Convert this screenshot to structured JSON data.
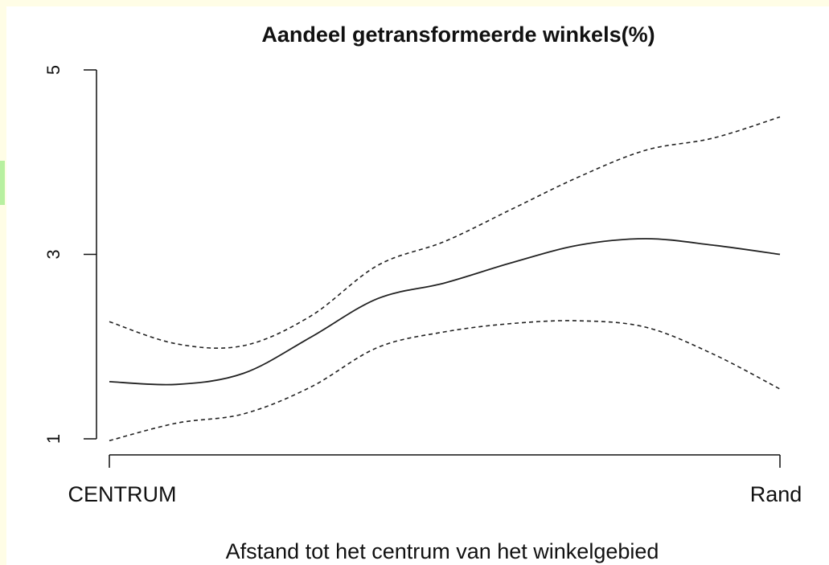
{
  "chart_data": {
    "type": "line",
    "title": "Aandeel getransformeerde winkels(%)",
    "x_label": "Afstand tot het centrum van het winkelgebied",
    "x": [
      0,
      0.1,
      0.2,
      0.3,
      0.4,
      0.5,
      0.6,
      0.7,
      0.8,
      0.9,
      1.0
    ],
    "xlim": [
      0,
      1
    ],
    "xticks": [
      {
        "value": 0,
        "label": "CENTRUM"
      },
      {
        "value": 1,
        "label": "Rand"
      }
    ],
    "ylim": [
      1,
      5
    ],
    "yticks": [
      1,
      3,
      5
    ],
    "series": [
      {
        "color": "#222222",
        "dashed": false,
        "values": [
          1.62,
          1.59,
          1.71,
          2.1,
          2.52,
          2.69,
          2.91,
          3.1,
          3.17,
          3.1,
          3.0
        ]
      },
      {
        "color": "#222222",
        "dashed": true,
        "values": [
          2.27,
          2.03,
          2.01,
          2.33,
          2.88,
          3.14,
          3.49,
          3.84,
          4.13,
          4.26,
          4.49
        ]
      },
      {
        "color": "#222222",
        "dashed": true,
        "values": [
          0.98,
          1.17,
          1.27,
          1.56,
          1.99,
          2.16,
          2.25,
          2.28,
          2.21,
          1.92,
          1.54
        ]
      }
    ]
  }
}
